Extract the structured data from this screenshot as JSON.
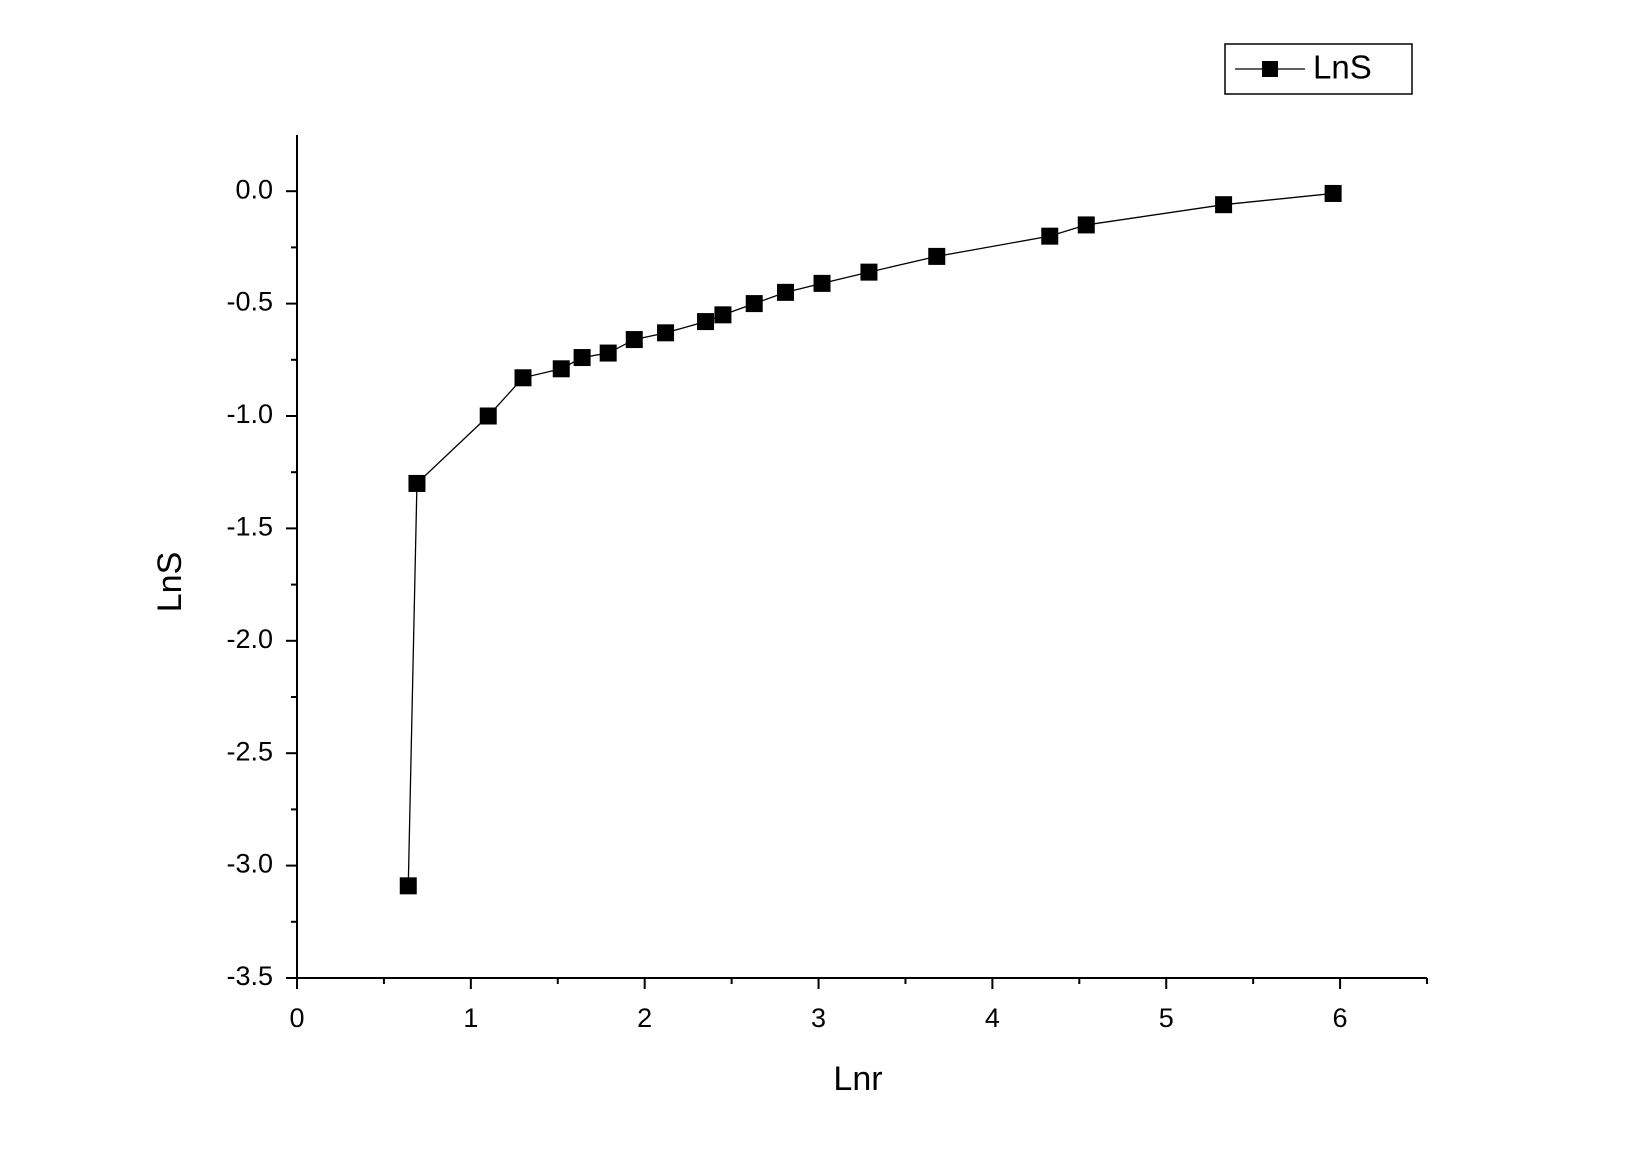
{
  "chart_data": {
    "type": "line",
    "x_label": "Lnr",
    "y_label": "LnS",
    "x": [
      0.64,
      0.69,
      1.1,
      1.3,
      1.52,
      1.64,
      1.79,
      1.94,
      2.12,
      2.35,
      2.45,
      2.63,
      2.81,
      3.02,
      3.29,
      3.68,
      4.33,
      4.54,
      5.33,
      5.96
    ],
    "series": [
      {
        "name": "LnS",
        "color": "#000000",
        "values": [
          -3.09,
          -1.3,
          -1.0,
          -0.83,
          -0.79,
          -0.74,
          -0.72,
          -0.66,
          -0.63,
          -0.58,
          -0.55,
          -0.5,
          -0.45,
          -0.41,
          -0.36,
          -0.29,
          -0.2,
          -0.15,
          -0.06,
          -0.01
        ]
      }
    ],
    "xlim": [
      0,
      6.5
    ],
    "xticks": [
      0,
      1,
      2,
      3,
      4,
      5,
      6
    ],
    "ylim": [
      -3.5,
      0.25
    ],
    "yticks": [
      {
        "value": -3.5,
        "label": "-3.5"
      },
      {
        "value": -3.0,
        "label": "-3.0"
      },
      {
        "value": -2.5,
        "label": "-2.5"
      },
      {
        "value": -2.0,
        "label": "-2.0"
      },
      {
        "value": -1.5,
        "label": "-1.5"
      },
      {
        "value": -1.0,
        "label": "-1.0"
      },
      {
        "value": -0.5,
        "label": "-0.5"
      },
      {
        "value": 0.0,
        "label": "0.0"
      }
    ],
    "legend": "top-right",
    "grid": false
  }
}
